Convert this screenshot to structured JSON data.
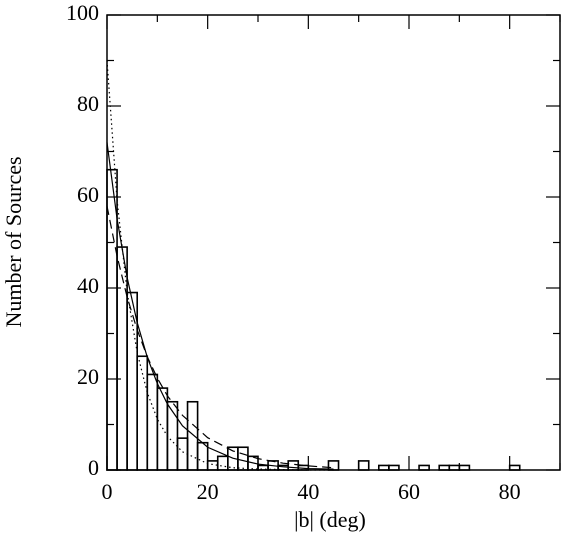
{
  "chart_data": {
    "type": "histogram",
    "xlabel": "|b| (deg)",
    "ylabel": "Number of Sources",
    "bins": [
      0,
      2,
      4,
      6,
      8,
      10,
      12,
      14,
      16,
      18,
      20,
      22,
      24,
      26,
      28,
      30,
      32,
      34,
      36,
      38,
      40,
      42,
      44,
      46,
      48,
      50,
      52,
      54,
      56,
      58,
      60,
      62,
      64,
      66,
      68,
      70,
      72,
      74,
      76,
      78,
      80,
      82
    ],
    "counts": [
      66,
      49,
      39,
      25,
      21,
      18,
      15,
      7,
      15,
      6,
      2,
      3,
      5,
      5,
      3,
      1,
      2,
      1,
      2,
      1,
      0,
      0,
      2,
      0,
      0,
      2,
      0,
      1,
      1,
      0,
      0,
      1,
      0,
      1,
      1,
      1,
      0,
      0,
      0,
      0,
      1
    ],
    "color": "#000000",
    "curves": [
      {
        "style": "solid",
        "x": [
          0,
          2,
          4,
          6,
          8,
          10,
          12,
          15,
          20,
          25,
          30,
          35,
          40,
          45
        ],
        "values": [
          72,
          55.2,
          42.3,
          32.4,
          24.8,
          19.0,
          14.5,
          9.7,
          5.0,
          2.6,
          1.3,
          0.7,
          0.3,
          0.2
        ]
      },
      {
        "style": "dashed",
        "x": [
          0,
          2,
          4,
          6,
          8,
          10,
          12,
          15,
          20,
          25,
          30,
          35,
          40,
          45
        ],
        "values": [
          58,
          47.0,
          38.0,
          30.8,
          24.9,
          20.2,
          16.3,
          12.0,
          7.1,
          4.2,
          2.5,
          1.5,
          0.9,
          0.5
        ]
      },
      {
        "style": "dotted",
        "x": [
          0,
          2,
          4,
          6,
          8,
          10,
          12,
          15,
          20,
          25,
          30,
          35,
          40,
          45
        ],
        "values": [
          90,
          59.3,
          39.1,
          25.8,
          17.0,
          11.2,
          7.4,
          4.0,
          1.4,
          0.5,
          0.2,
          0.1,
          0.0,
          0.0
        ]
      }
    ],
    "xlim": [
      0,
      90
    ],
    "xticks": [
      0,
      20,
      40,
      60,
      80
    ],
    "xminorticks": [
      10,
      30,
      50,
      70,
      90
    ],
    "ylim": [
      0,
      100
    ],
    "yticks": [
      0,
      20,
      40,
      60,
      80,
      100
    ],
    "yminorticks": [
      10,
      30,
      50,
      70,
      90
    ]
  }
}
